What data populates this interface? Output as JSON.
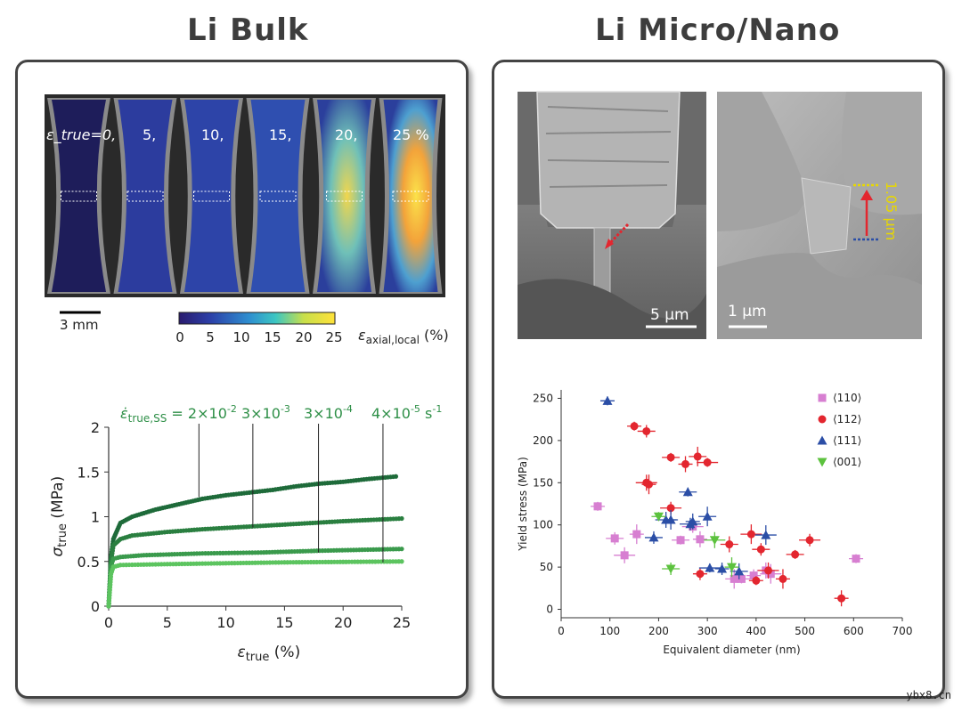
{
  "titles": {
    "left": "Li Bulk",
    "right": "Li Micro/Nano"
  },
  "colors": {
    "dark_green": "#1e6b3a",
    "mid_green": "#2e8f47",
    "light_green": "#57b85f",
    "pink": "#d77fd1",
    "red": "#e3262f",
    "blue": "#2b4ea6",
    "green_tri": "#5cc23e"
  },
  "strain_images": {
    "labels": [
      "ε_true=0,",
      "5,",
      "10,",
      "15,",
      "20,",
      "25 %"
    ],
    "scalebar_label": "3 mm",
    "colorbar": {
      "ticks": [
        "0",
        "5",
        "10",
        "15",
        "20",
        "25"
      ],
      "label_main": "ε",
      "label_sub": "axial,local",
      "label_unit": " (%)"
    }
  },
  "sem": {
    "left_scalebar": "5 μm",
    "right_scalebar": "1 μm",
    "height_label": "1.05 μm"
  },
  "watermark": "ybx8.cn",
  "chart_data": [
    {
      "id": "stress-strain",
      "type": "line",
      "title": "",
      "xlabel": "ε_true (%)",
      "ylabel": "σ_true (MPa)",
      "xlim": [
        0,
        25
      ],
      "ylim": [
        0,
        2
      ],
      "xticks": [
        "0",
        "5",
        "10",
        "15",
        "20",
        "25"
      ],
      "yticks": [
        "0",
        "0.5",
        "1",
        "1.5",
        "2"
      ],
      "rate_label_prefix": "ε̇_true,SS = ",
      "rate_annotations": [
        {
          "label": "2×10⁻²",
          "x": 7.7,
          "y_line_end": 1.22
        },
        {
          "label": "3×10⁻³",
          "x": 12.3,
          "y_line_end": 0.88
        },
        {
          "label": "3×10⁻⁴",
          "x": 17.9,
          "y_line_end": 0.6
        },
        {
          "label": "4×10⁻⁵ s⁻¹",
          "x": 23.4,
          "y_line_end": 0.49
        }
      ],
      "series": [
        {
          "name": "2×10⁻² s⁻¹",
          "color": "#1e6b3a",
          "points": [
            [
              0,
              0
            ],
            [
              0.2,
              0.55
            ],
            [
              0.4,
              0.75
            ],
            [
              1,
              0.93
            ],
            [
              2,
              1.0
            ],
            [
              4,
              1.08
            ],
            [
              6,
              1.14
            ],
            [
              8,
              1.2
            ],
            [
              10,
              1.24
            ],
            [
              12,
              1.27
            ],
            [
              14,
              1.3
            ],
            [
              16,
              1.34
            ],
            [
              18,
              1.37
            ],
            [
              20,
              1.39
            ],
            [
              22,
              1.42
            ],
            [
              24.5,
              1.45
            ]
          ]
        },
        {
          "name": "3×10⁻³ s⁻¹",
          "color": "#2a7f40",
          "points": [
            [
              0,
              0
            ],
            [
              0.2,
              0.5
            ],
            [
              0.4,
              0.68
            ],
            [
              1,
              0.75
            ],
            [
              2,
              0.79
            ],
            [
              5,
              0.83
            ],
            [
              8,
              0.86
            ],
            [
              12,
              0.89
            ],
            [
              16,
              0.92
            ],
            [
              20,
              0.95
            ],
            [
              25,
              0.98
            ]
          ]
        },
        {
          "name": "3×10⁻⁴ s⁻¹",
          "color": "#3a9a4c",
          "points": [
            [
              0,
              0
            ],
            [
              0.2,
              0.45
            ],
            [
              0.4,
              0.53
            ],
            [
              1,
              0.55
            ],
            [
              3,
              0.57
            ],
            [
              8,
              0.59
            ],
            [
              13,
              0.6
            ],
            [
              18,
              0.62
            ],
            [
              25,
              0.64
            ]
          ]
        },
        {
          "name": "4×10⁻⁵ s⁻¹",
          "color": "#5cc45f",
          "points": [
            [
              0,
              0
            ],
            [
              0.2,
              0.36
            ],
            [
              0.4,
              0.44
            ],
            [
              1,
              0.46
            ],
            [
              5,
              0.47
            ],
            [
              10,
              0.48
            ],
            [
              15,
              0.49
            ],
            [
              20,
              0.495
            ],
            [
              25,
              0.5
            ]
          ]
        }
      ]
    },
    {
      "id": "yield-vs-diameter",
      "type": "scatter",
      "title": "",
      "xlabel": "Equivalent diameter (nm)",
      "ylabel": "Yield stress (MPa)",
      "xlim": [
        0,
        700
      ],
      "ylim": [
        -10,
        260
      ],
      "xticks": [
        "0",
        "100",
        "200",
        "300",
        "400",
        "500",
        "600",
        "700"
      ],
      "yticks": [
        "0",
        "50",
        "100",
        "150",
        "200",
        "250"
      ],
      "legend_position": "top-right",
      "series": [
        {
          "name": "⟨110⟩",
          "marker": "square",
          "color": "#d77fd1",
          "points": [
            [
              75,
              122
            ],
            [
              110,
              84
            ],
            [
              130,
              64
            ],
            [
              155,
              89
            ],
            [
              245,
              82
            ],
            [
              270,
              98
            ],
            [
              285,
              83
            ],
            [
              355,
              36
            ],
            [
              370,
              36
            ],
            [
              395,
              40
            ],
            [
              420,
              46
            ],
            [
              430,
              42
            ],
            [
              605,
              60
            ]
          ]
        },
        {
          "name": "⟨112⟩",
          "marker": "circle",
          "color": "#e3262f",
          "points": [
            [
              150,
              217
            ],
            [
              175,
              211
            ],
            [
              175,
              150
            ],
            [
              180,
              148
            ],
            [
              225,
              180
            ],
            [
              225,
              120
            ],
            [
              255,
              172
            ],
            [
              280,
              181
            ],
            [
              300,
              174
            ],
            [
              285,
              42
            ],
            [
              345,
              77
            ],
            [
              390,
              89
            ],
            [
              400,
              34
            ],
            [
              410,
              71
            ],
            [
              425,
              46
            ],
            [
              455,
              36
            ],
            [
              480,
              65
            ],
            [
              510,
              82
            ],
            [
              575,
              13
            ]
          ]
        },
        {
          "name": "⟨111⟩",
          "marker": "triangle-up",
          "color": "#2b4ea6",
          "points": [
            [
              95,
              247
            ],
            [
              190,
              85
            ],
            [
              215,
              106
            ],
            [
              225,
              106
            ],
            [
              260,
              139
            ],
            [
              265,
              101
            ],
            [
              270,
              104
            ],
            [
              300,
              110
            ],
            [
              305,
              49
            ],
            [
              330,
              48
            ],
            [
              365,
              45
            ],
            [
              420,
              88
            ]
          ]
        },
        {
          "name": "⟨001⟩",
          "marker": "triangle-down",
          "color": "#5cc23e",
          "points": [
            [
              200,
              110
            ],
            [
              225,
              48
            ],
            [
              315,
              82
            ],
            [
              350,
              50
            ]
          ]
        }
      ]
    }
  ]
}
